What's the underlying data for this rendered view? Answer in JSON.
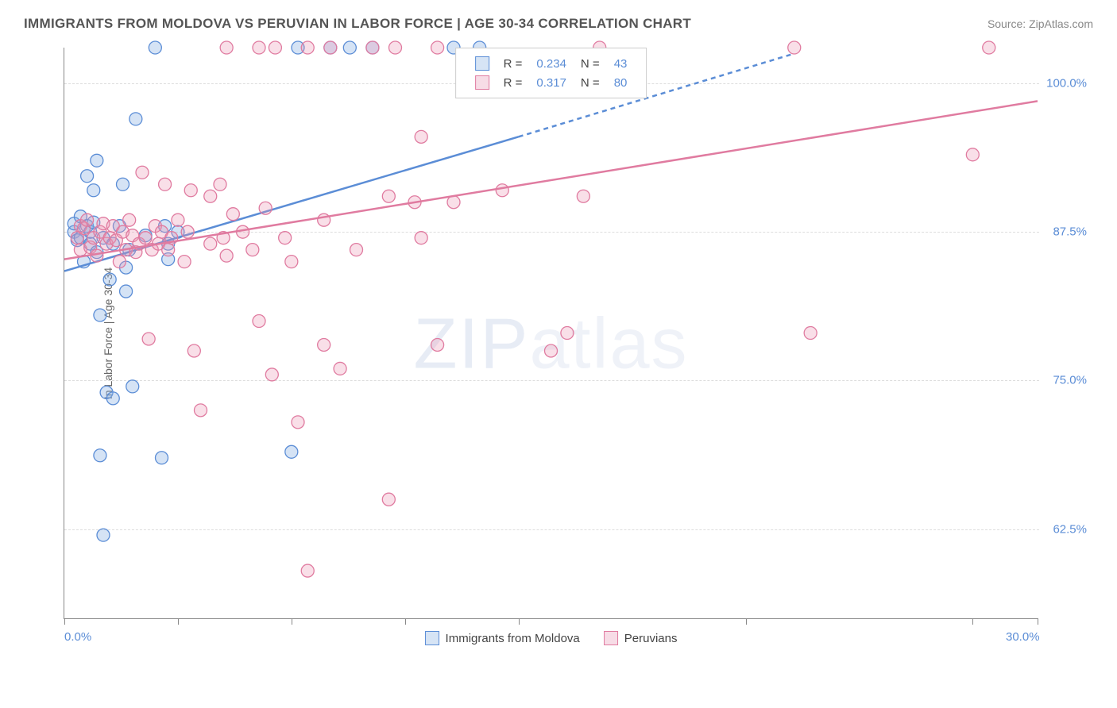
{
  "title": "IMMIGRANTS FROM MOLDOVA VS PERUVIAN IN LABOR FORCE | AGE 30-34 CORRELATION CHART",
  "source": "Source: ZipAtlas.com",
  "y_axis_title": "In Labor Force | Age 30-34",
  "watermark_a": "ZIP",
  "watermark_b": "atlas",
  "chart": {
    "type": "scatter-with-regression",
    "xlim": [
      0,
      30
    ],
    "ylim": [
      55,
      103
    ],
    "x_ticks": [
      0,
      3.5,
      7,
      10.5,
      14,
      21,
      28,
      30
    ],
    "x_labels": [
      {
        "x": 0,
        "text": "0.0%"
      },
      {
        "x": 30,
        "text": "30.0%"
      }
    ],
    "y_gridlines": [
      62.5,
      75.0,
      87.5,
      100.0
    ],
    "y_labels": [
      {
        "y": 62.5,
        "text": "62.5%"
      },
      {
        "y": 75.0,
        "text": "75.0%"
      },
      {
        "y": 87.5,
        "text": "87.5%"
      },
      {
        "y": 100.0,
        "text": "100.0%"
      }
    ],
    "background_color": "#ffffff",
    "grid_color": "#dddddd",
    "series": [
      {
        "name": "Immigrants from Moldova",
        "short": "moldova",
        "color_stroke": "#5b8dd6",
        "color_fill": "rgba(135,175,225,0.35)",
        "swatch_fill": "#d6e4f5",
        "swatch_stroke": "#5b8dd6",
        "r_value": "0.234",
        "n_value": "43",
        "marker_radius": 8,
        "regression": {
          "x1": 0,
          "y1": 84.2,
          "x2": 14,
          "y2": 95.5,
          "x2_dash": 22.5,
          "y2_dash": 102.5
        },
        "line_width": 2.5,
        "points": [
          [
            0.3,
            87.5
          ],
          [
            0.3,
            88.2
          ],
          [
            0.4,
            86.8
          ],
          [
            0.5,
            88.8
          ],
          [
            0.5,
            87.0
          ],
          [
            0.6,
            85.0
          ],
          [
            0.7,
            88.0
          ],
          [
            0.7,
            92.2
          ],
          [
            0.8,
            86.5
          ],
          [
            0.8,
            87.5
          ],
          [
            0.9,
            91.0
          ],
          [
            0.9,
            88.3
          ],
          [
            1.0,
            85.8
          ],
          [
            1.0,
            93.5
          ],
          [
            1.1,
            68.7
          ],
          [
            1.1,
            80.5
          ],
          [
            1.2,
            62.0
          ],
          [
            1.2,
            87.0
          ],
          [
            1.3,
            74.0
          ],
          [
            1.4,
            83.5
          ],
          [
            1.5,
            73.5
          ],
          [
            1.5,
            86.5
          ],
          [
            1.7,
            88.0
          ],
          [
            1.8,
            91.5
          ],
          [
            1.9,
            84.5
          ],
          [
            1.9,
            82.5
          ],
          [
            2.0,
            86.0
          ],
          [
            2.1,
            74.5
          ],
          [
            2.2,
            97.0
          ],
          [
            2.5,
            87.2
          ],
          [
            2.8,
            103.0
          ],
          [
            3.0,
            68.5
          ],
          [
            3.1,
            88.0
          ],
          [
            3.2,
            86.5
          ],
          [
            3.2,
            85.2
          ],
          [
            3.5,
            87.5
          ],
          [
            7.0,
            69.0
          ],
          [
            7.2,
            103.0
          ],
          [
            8.2,
            103.0
          ],
          [
            8.8,
            103.0
          ],
          [
            9.5,
            103.0
          ],
          [
            12.0,
            103.0
          ],
          [
            12.8,
            103.0
          ]
        ]
      },
      {
        "name": "Peruvians",
        "short": "peruvians",
        "color_stroke": "#e07ba0",
        "color_fill": "rgba(235,150,180,0.30)",
        "swatch_fill": "#f7dce6",
        "swatch_stroke": "#e07ba0",
        "r_value": "0.317",
        "n_value": "80",
        "marker_radius": 8,
        "regression": {
          "x1": 0,
          "y1": 85.2,
          "x2": 30,
          "y2": 98.5
        },
        "line_width": 2.5,
        "points": [
          [
            0.4,
            87.0
          ],
          [
            0.5,
            88.0
          ],
          [
            0.5,
            86.0
          ],
          [
            0.6,
            87.8
          ],
          [
            0.7,
            88.5
          ],
          [
            0.8,
            86.2
          ],
          [
            0.9,
            87.0
          ],
          [
            1.0,
            85.5
          ],
          [
            1.1,
            87.5
          ],
          [
            1.2,
            88.2
          ],
          [
            1.3,
            86.5
          ],
          [
            1.4,
            87.0
          ],
          [
            1.5,
            88.0
          ],
          [
            1.6,
            86.8
          ],
          [
            1.7,
            85.0
          ],
          [
            1.8,
            87.5
          ],
          [
            1.9,
            86.0
          ],
          [
            2.0,
            88.5
          ],
          [
            2.1,
            87.2
          ],
          [
            2.2,
            85.8
          ],
          [
            2.3,
            86.5
          ],
          [
            2.4,
            92.5
          ],
          [
            2.5,
            87.0
          ],
          [
            2.6,
            78.5
          ],
          [
            2.7,
            86.0
          ],
          [
            2.8,
            88.0
          ],
          [
            2.9,
            86.5
          ],
          [
            3.0,
            87.5
          ],
          [
            3.1,
            91.5
          ],
          [
            3.2,
            86.0
          ],
          [
            3.3,
            87.0
          ],
          [
            3.5,
            88.5
          ],
          [
            3.7,
            85.0
          ],
          [
            3.8,
            87.5
          ],
          [
            3.9,
            91.0
          ],
          [
            4.0,
            77.5
          ],
          [
            4.2,
            72.5
          ],
          [
            4.5,
            90.5
          ],
          [
            4.8,
            91.5
          ],
          [
            4.9,
            87.0
          ],
          [
            5.0,
            85.5
          ],
          [
            5.2,
            89.0
          ],
          [
            5.5,
            87.5
          ],
          [
            5.8,
            86.0
          ],
          [
            6.0,
            80.0
          ],
          [
            6.2,
            89.5
          ],
          [
            6.4,
            75.5
          ],
          [
            6.5,
            103.0
          ],
          [
            6.8,
            87.0
          ],
          [
            7.0,
            85.0
          ],
          [
            7.2,
            71.5
          ],
          [
            7.5,
            59.0
          ],
          [
            7.5,
            103.0
          ],
          [
            8.0,
            78.0
          ],
          [
            8.0,
            88.5
          ],
          [
            8.2,
            103.0
          ],
          [
            8.5,
            76.0
          ],
          [
            9.0,
            86.0
          ],
          [
            9.5,
            103.0
          ],
          [
            10.0,
            90.5
          ],
          [
            10.0,
            65.0
          ],
          [
            10.2,
            103.0
          ],
          [
            10.8,
            90.0
          ],
          [
            11.0,
            87.0
          ],
          [
            11.0,
            95.5
          ],
          [
            11.5,
            78.0
          ],
          [
            11.5,
            103.0
          ],
          [
            12.0,
            90.0
          ],
          [
            13.5,
            91.0
          ],
          [
            15.0,
            77.5
          ],
          [
            15.5,
            79.0
          ],
          [
            16.0,
            90.5
          ],
          [
            16.5,
            103.0
          ],
          [
            22.5,
            103.0
          ],
          [
            23.0,
            79.0
          ],
          [
            28.0,
            94.0
          ],
          [
            28.5,
            103.0
          ],
          [
            6.0,
            103.0
          ],
          [
            5.0,
            103.0
          ],
          [
            4.5,
            86.5
          ]
        ]
      }
    ]
  },
  "legend_bottom": [
    {
      "label": "Immigrants from Moldova",
      "fill": "#d6e4f5",
      "stroke": "#5b8dd6"
    },
    {
      "label": "Peruvians",
      "fill": "#f7dce6",
      "stroke": "#e07ba0"
    }
  ]
}
